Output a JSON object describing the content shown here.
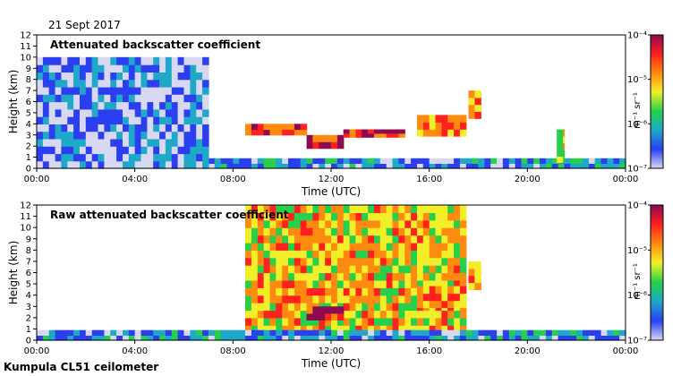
{
  "date_label": "21 Sept 2017",
  "footer_label": "Kumpula CL51 ceilometer",
  "colors": {
    "scale": [
      "#d8d8f2",
      "#2b3ff0",
      "#1fa8c8",
      "#27d04a",
      "#f2ee2a",
      "#ff8a10",
      "#ff2020",
      "#8b0a50"
    ],
    "background": "#ffffff"
  },
  "chart_data": [
    {
      "type": "heatmap",
      "title": "Attenuated backscatter coefficient",
      "xlabel": "Time (UTC)",
      "ylabel": "Height (km)",
      "x_ticks": [
        "00:00",
        "04:00",
        "08:00",
        "12:00",
        "16:00",
        "20:00",
        "00:00"
      ],
      "y_ticks": [
        "0",
        "1",
        "2",
        "3",
        "4",
        "5",
        "6",
        "7",
        "8",
        "9",
        "10",
        "11",
        "12"
      ],
      "xlim_hours": [
        0,
        24
      ],
      "ylim_km": [
        0,
        12
      ],
      "colorbar": {
        "label": "m⁻¹ sr⁻¹",
        "tick_labels": [
          "10⁻⁴",
          "10⁻⁵",
          "10⁻⁶",
          "10⁻⁷"
        ],
        "log_range": [
          -7,
          -4
        ]
      },
      "features": [
        {
          "name": "boundary layer",
          "t_start": 0,
          "t_end": 24,
          "top_km": 0.9,
          "level": 0.25
        },
        {
          "name": "high signal region",
          "t_start": 0,
          "t_end": 7,
          "top_km": 10,
          "level": 0.18
        },
        {
          "name": "cloud layer",
          "t_start": 8.5,
          "t_end": 11,
          "base_km": 3.0,
          "top_km": 4.0,
          "level": 0.8
        },
        {
          "name": "cloud layer",
          "t_start": 11,
          "t_end": 12.5,
          "base_km": 1.8,
          "top_km": 3.0,
          "level": 0.85
        },
        {
          "name": "cloud layer",
          "t_start": 12.5,
          "t_end": 15,
          "base_km": 2.8,
          "top_km": 3.5,
          "level": 0.8
        },
        {
          "name": "cloud layer",
          "t_start": 15.5,
          "t_end": 17.5,
          "base_km": 2.9,
          "top_km": 4.8,
          "level": 0.7
        },
        {
          "name": "cloud layer",
          "t_start": 17.6,
          "t_end": 18.1,
          "base_km": 4.5,
          "top_km": 7.0,
          "level": 0.65
        },
        {
          "name": "cloud layer",
          "t_start": 21.2,
          "t_end": 21.5,
          "base_km": 0.5,
          "top_km": 3.5,
          "level": 0.5
        }
      ]
    },
    {
      "type": "heatmap",
      "title": "Raw attenuated backscatter coefficient",
      "xlabel": "Time (UTC)",
      "ylabel": "Height (km)",
      "x_ticks": [
        "00:00",
        "04:00",
        "08:00",
        "12:00",
        "16:00",
        "20:00",
        "00:00"
      ],
      "y_ticks": [
        "0",
        "1",
        "2",
        "3",
        "4",
        "5",
        "6",
        "7",
        "8",
        "9",
        "10",
        "11",
        "12"
      ],
      "xlim_hours": [
        0,
        24
      ],
      "ylim_km": [
        0,
        12
      ],
      "colorbar": {
        "label": "m⁻¹ sr⁻¹",
        "tick_labels": [
          "10⁻⁴",
          "10⁻⁵",
          "10⁻⁶",
          "10⁻⁷"
        ],
        "log_range": [
          -7,
          -4
        ]
      },
      "features": [
        {
          "name": "noise field",
          "t_start": 8.5,
          "t_end": 17.5,
          "level": 0.62
        },
        {
          "name": "boundary layer",
          "t_start": 0,
          "t_end": 24,
          "top_km": 0.9,
          "level": 0.25
        },
        {
          "name": "cloud layer",
          "t_start": 11,
          "t_end": 12.5,
          "base_km": 1.8,
          "top_km": 3.0,
          "level": 0.85
        },
        {
          "name": "cloud layer",
          "t_start": 15.5,
          "t_end": 17.5,
          "base_km": 2.9,
          "top_km": 4.8,
          "level": 0.7
        },
        {
          "name": "cloud layer",
          "t_start": 17.6,
          "t_end": 18.1,
          "base_km": 4.5,
          "top_km": 7.0,
          "level": 0.65
        }
      ]
    }
  ]
}
